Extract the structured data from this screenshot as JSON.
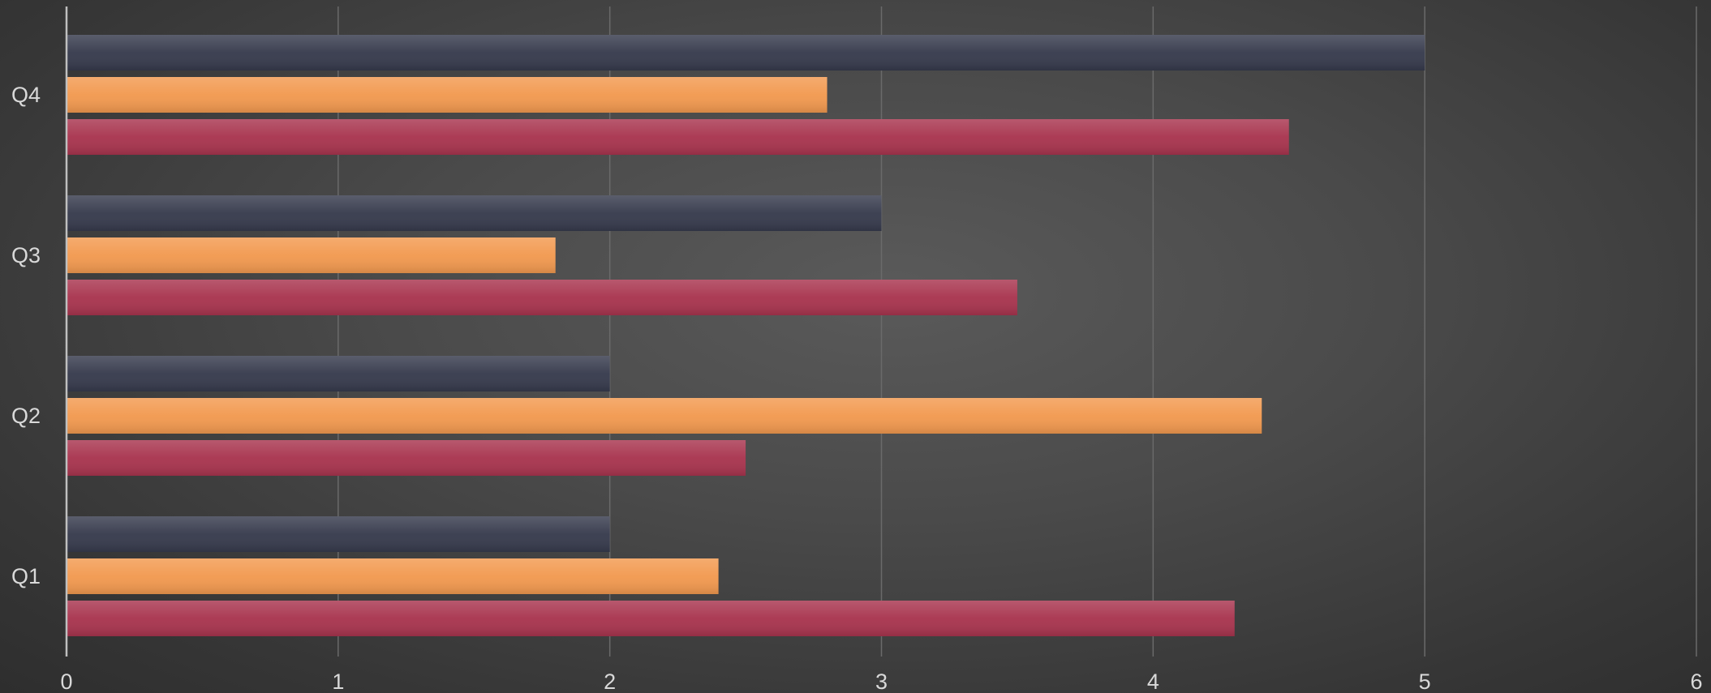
{
  "chart_data": {
    "type": "bar",
    "orientation": "horizontal",
    "categories": [
      "Q1",
      "Q2",
      "Q3",
      "Q4"
    ],
    "series": [
      {
        "color": "#a8344e",
        "values": [
          4.3,
          2.5,
          3.5,
          4.5
        ]
      },
      {
        "color": "#f2994f",
        "values": [
          2.4,
          4.4,
          1.8,
          2.8
        ]
      },
      {
        "color": "#363a4c",
        "values": [
          2.0,
          2.0,
          3.0,
          5.0
        ]
      }
    ],
    "x_ticks": [
      "0",
      "1",
      "2",
      "3",
      "4",
      "5",
      "6"
    ],
    "xlim": [
      0,
      6
    ],
    "title": "",
    "xlabel": "",
    "ylabel": "",
    "grid": true,
    "legend": "none",
    "background": "#4a4a4a",
    "gridline_color": "#6a6a6a",
    "axis_line_color": "#bfbfbf",
    "tick_label_color": "#d9d9d9"
  }
}
